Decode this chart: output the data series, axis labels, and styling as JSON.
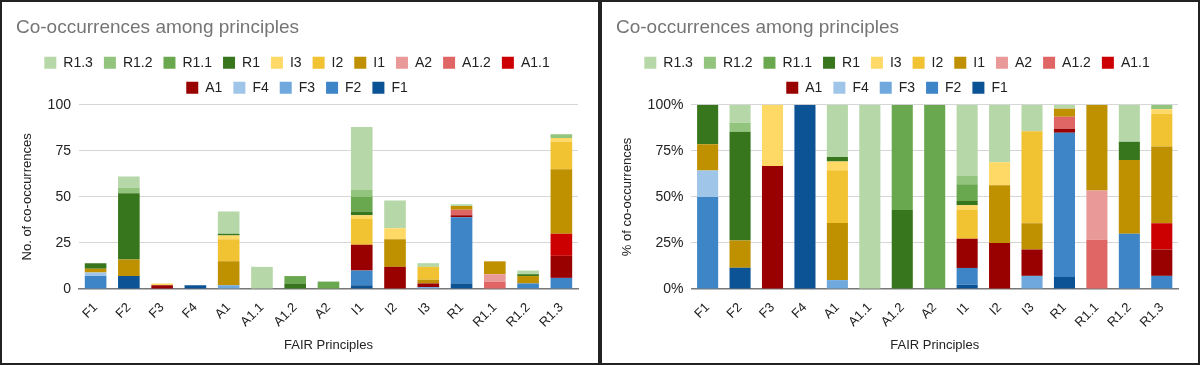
{
  "chart_data": [
    {
      "type": "bar",
      "title": "Co-occurrences among principles",
      "xlabel": "FAIR Principles",
      "ylabel": "No. of co-occurrences",
      "stacked": true,
      "legend": "top",
      "grid": "y",
      "categories": [
        "F1",
        "F2",
        "F3",
        "F4",
        "A1",
        "A1.1",
        "A1.2",
        "A2",
        "I1",
        "I2",
        "I3",
        "R1",
        "R1.1",
        "R1.2",
        "R1.3"
      ],
      "ylim": [
        0,
        100
      ],
      "yticks": [
        0,
        25,
        50,
        75,
        100
      ],
      "series": [
        {
          "name": "F1",
          "color": "#0b5394",
          "values": [
            0,
            7,
            0,
            2,
            0,
            0,
            0,
            0,
            2,
            0,
            0,
            3,
            0,
            0,
            0
          ]
        },
        {
          "name": "F2",
          "color": "#3d85c6",
          "values": [
            7,
            0,
            0,
            0,
            0,
            0,
            0,
            0,
            8,
            0,
            0,
            36,
            0,
            3,
            6
          ]
        },
        {
          "name": "F3",
          "color": "#6fa8dc",
          "values": [
            0,
            0,
            0,
            0,
            2,
            0,
            0,
            0,
            0,
            0,
            1,
            0,
            0,
            0,
            0
          ]
        },
        {
          "name": "F4",
          "color": "#9fc5e8",
          "values": [
            2,
            0,
            0,
            0,
            0,
            0,
            0,
            0,
            0,
            0,
            0,
            0,
            0,
            0,
            0
          ]
        },
        {
          "name": "A1",
          "color": "#990000",
          "values": [
            0,
            0,
            2,
            0,
            0,
            0,
            0,
            0,
            14,
            12,
            2,
            1,
            0,
            0,
            12
          ]
        },
        {
          "name": "A1.1",
          "color": "#cc0000",
          "values": [
            0,
            0,
            0,
            0,
            0,
            0,
            0,
            0,
            0,
            0,
            0,
            0,
            0,
            0,
            12
          ]
        },
        {
          "name": "A1.2",
          "color": "#e06666",
          "values": [
            0,
            0,
            0,
            0,
            0,
            0,
            0,
            0,
            0,
            0,
            0,
            3,
            4,
            0,
            0
          ]
        },
        {
          "name": "A2",
          "color": "#ea9999",
          "values": [
            0,
            0,
            0,
            0,
            0,
            0,
            0,
            0,
            0,
            0,
            0,
            0,
            4,
            0,
            0
          ]
        },
        {
          "name": "I1",
          "color": "#bf9000",
          "values": [
            2,
            9,
            0,
            0,
            13,
            0,
            0,
            0,
            0,
            15,
            2,
            2,
            7,
            4,
            35
          ]
        },
        {
          "name": "I2",
          "color": "#f1c232",
          "values": [
            0,
            0,
            0,
            0,
            12,
            0,
            0,
            0,
            14,
            0,
            7,
            0,
            0,
            0,
            15
          ]
        },
        {
          "name": "I3",
          "color": "#ffd966",
          "values": [
            0,
            0,
            1,
            0,
            2,
            0,
            0,
            0,
            2,
            6,
            0,
            0,
            0,
            0,
            2
          ]
        },
        {
          "name": "R1",
          "color": "#38761d",
          "values": [
            3,
            36,
            0,
            0,
            1,
            0,
            3,
            0,
            2,
            0,
            0,
            0,
            0,
            1,
            0
          ]
        },
        {
          "name": "R1.1",
          "color": "#6aa84f",
          "values": [
            0,
            0,
            0,
            0,
            0,
            0,
            4,
            4,
            8,
            0,
            0,
            0,
            0,
            0,
            0
          ]
        },
        {
          "name": "R1.2",
          "color": "#93c47d",
          "values": [
            0,
            3,
            0,
            0,
            0,
            0,
            0,
            0,
            4,
            0,
            0,
            0,
            0,
            0,
            2
          ]
        },
        {
          "name": "R1.3",
          "color": "#b6d7a8",
          "values": [
            0,
            6,
            0,
            0,
            12,
            12,
            0,
            0,
            34,
            15,
            2,
            1,
            0,
            2,
            0
          ]
        }
      ]
    },
    {
      "type": "bar",
      "title": "Co-occurrences among principles",
      "xlabel": "FAIR Principles",
      "ylabel": "% of co-occurrences",
      "stacked": true,
      "legend": "top",
      "grid": "y",
      "categories": [
        "F1",
        "F2",
        "F3",
        "F4",
        "A1",
        "A1.1",
        "A1.2",
        "A2",
        "I1",
        "I2",
        "I3",
        "R1",
        "R1.1",
        "R1.2",
        "R1.3"
      ],
      "ylim": [
        0,
        100
      ],
      "yticks": [
        {
          "value": 0,
          "label": "0%"
        },
        {
          "value": 25,
          "label": "25%"
        },
        {
          "value": 50,
          "label": "50%"
        },
        {
          "value": 75,
          "label": "75%"
        },
        {
          "value": 100,
          "label": "100%"
        }
      ],
      "series": [
        {
          "name": "F1",
          "color": "#0b5394",
          "values": [
            0,
            11.5,
            0,
            100,
            0,
            0,
            0,
            0,
            2.3,
            0,
            0,
            6.5,
            0,
            0,
            0
          ]
        },
        {
          "name": "F2",
          "color": "#3d85c6",
          "values": [
            50,
            0,
            0,
            0,
            0,
            0,
            0,
            0,
            9.1,
            0,
            0,
            78.3,
            0,
            30,
            7.1
          ]
        },
        {
          "name": "F3",
          "color": "#6fa8dc",
          "values": [
            0,
            0,
            0,
            0,
            4.8,
            0,
            0,
            0,
            0,
            0,
            7.1,
            0,
            0,
            0,
            0
          ]
        },
        {
          "name": "F4",
          "color": "#9fc5e8",
          "values": [
            14.3,
            0,
            0,
            0,
            0,
            0,
            0,
            0,
            0,
            0,
            0,
            0,
            0,
            0,
            0
          ]
        },
        {
          "name": "A1",
          "color": "#990000",
          "values": [
            0,
            0,
            66.7,
            0,
            0,
            0,
            0,
            0,
            15.9,
            25,
            14.3,
            2.2,
            0,
            0,
            14.3
          ]
        },
        {
          "name": "A1.1",
          "color": "#cc0000",
          "values": [
            0,
            0,
            0,
            0,
            0,
            0,
            0,
            0,
            0,
            0,
            0,
            0,
            0,
            0,
            14.3
          ]
        },
        {
          "name": "A1.2",
          "color": "#e06666",
          "values": [
            0,
            0,
            0,
            0,
            0,
            0,
            0,
            0,
            0,
            0,
            0,
            6.5,
            26.7,
            0,
            0
          ]
        },
        {
          "name": "A2",
          "color": "#ea9999",
          "values": [
            0,
            0,
            0,
            0,
            0,
            0,
            0,
            0,
            0,
            0,
            0,
            0,
            26.7,
            0,
            0
          ]
        },
        {
          "name": "I1",
          "color": "#bf9000",
          "values": [
            14.3,
            14.8,
            0,
            0,
            31,
            0,
            0,
            0,
            0,
            31.3,
            14.3,
            4.3,
            46.6,
            40,
            41.6
          ]
        },
        {
          "name": "I2",
          "color": "#f1c232",
          "values": [
            0,
            0,
            0,
            0,
            28.6,
            0,
            0,
            0,
            15.9,
            0,
            50,
            0,
            0,
            0,
            17.9
          ]
        },
        {
          "name": "I3",
          "color": "#ffd966",
          "values": [
            0,
            0,
            33.3,
            0,
            4.8,
            0,
            0,
            0,
            2.3,
            12.5,
            0,
            0,
            0,
            0,
            2.4
          ]
        },
        {
          "name": "R1",
          "color": "#38761d",
          "values": [
            21.4,
            59,
            0,
            0,
            2.4,
            0,
            42.9,
            0,
            2.3,
            0,
            0,
            0,
            0,
            10,
            0
          ]
        },
        {
          "name": "R1.1",
          "color": "#6aa84f",
          "values": [
            0,
            0,
            0,
            0,
            0,
            0,
            57.1,
            100,
            9.1,
            0,
            0,
            0,
            0,
            0,
            0
          ]
        },
        {
          "name": "R1.2",
          "color": "#93c47d",
          "values": [
            0,
            4.9,
            0,
            0,
            0,
            0,
            0,
            0,
            4.5,
            0,
            0,
            0,
            0,
            0,
            2.4
          ]
        },
        {
          "name": "R1.3",
          "color": "#b6d7a8",
          "values": [
            0,
            9.8,
            0,
            0,
            28.4,
            100,
            0,
            0,
            38.6,
            31.2,
            14.3,
            2.2,
            0,
            20,
            0
          ]
        }
      ]
    }
  ]
}
